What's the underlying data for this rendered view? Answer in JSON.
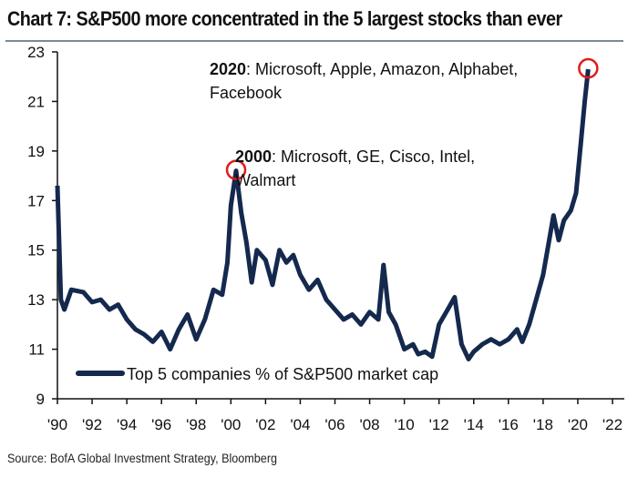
{
  "title": "Chart 7: S&P500 more concentrated in the 5 largest stocks than ever",
  "source": "Source: BofA Global Investment Strategy, Bloomberg",
  "chart_data": {
    "type": "line",
    "title": "Chart 7: S&P500 more concentrated in the 5 largest stocks than ever",
    "xlabel": "",
    "ylabel": "",
    "xlim": [
      1990,
      2023
    ],
    "ylim": [
      9,
      23
    ],
    "yticks": [
      9,
      11,
      13,
      15,
      17,
      19,
      21,
      23
    ],
    "xticks": [
      1990,
      1992,
      1994,
      1996,
      1998,
      2000,
      2002,
      2004,
      2006,
      2008,
      2010,
      2012,
      2014,
      2016,
      2018,
      2020,
      2022
    ],
    "xtick_labels": [
      "'90",
      "'92",
      "'94",
      "'96",
      "'98",
      "'00",
      "'02",
      "'04",
      "'06",
      "'08",
      "'10",
      "'12",
      "'14",
      "'16",
      "'18",
      "'20",
      "'22"
    ],
    "grid": false,
    "legend_placement": "bottom-left",
    "line_color": "#14294d",
    "highlight_color": "#e01b1b",
    "series": [
      {
        "name": "Top 5 companies % of S&P500 market cap",
        "x": [
          1990.0,
          1990.2,
          1990.4,
          1990.8,
          1991.5,
          1992.0,
          1992.5,
          1993.0,
          1993.5,
          1994.0,
          1994.5,
          1995.0,
          1995.5,
          1996.0,
          1996.5,
          1997.0,
          1997.5,
          1998.0,
          1998.5,
          1999.0,
          1999.5,
          1999.8,
          2000.0,
          2000.3,
          2000.6,
          2000.9,
          2001.2,
          2001.5,
          2002.0,
          2002.4,
          2002.8,
          2003.2,
          2003.6,
          2004.0,
          2004.5,
          2005.0,
          2005.5,
          2006.0,
          2006.5,
          2007.0,
          2007.5,
          2008.0,
          2008.5,
          2008.8,
          2009.1,
          2009.5,
          2010.0,
          2010.5,
          2010.8,
          2011.2,
          2011.6,
          2012.0,
          2012.5,
          2012.9,
          2013.3,
          2013.7,
          2014.0,
          2014.5,
          2015.0,
          2015.5,
          2016.0,
          2016.5,
          2016.8,
          2017.2,
          2017.6,
          2018.0,
          2018.3,
          2018.6,
          2018.9,
          2019.2,
          2019.6,
          2019.9,
          2020.2,
          2020.4,
          2020.6
        ],
        "values": [
          17.6,
          13.0,
          12.6,
          13.4,
          13.3,
          12.9,
          13.0,
          12.6,
          12.8,
          12.2,
          11.8,
          11.6,
          11.3,
          11.7,
          11.0,
          11.8,
          12.4,
          11.4,
          12.2,
          13.4,
          13.2,
          14.5,
          16.8,
          18.2,
          16.5,
          15.3,
          13.7,
          15.0,
          14.6,
          13.6,
          15.0,
          14.5,
          14.8,
          14.0,
          13.4,
          13.8,
          13.0,
          12.6,
          12.2,
          12.4,
          12.0,
          12.5,
          12.2,
          14.4,
          12.5,
          12.0,
          11.0,
          11.2,
          10.8,
          10.9,
          10.7,
          12.0,
          12.6,
          13.1,
          11.2,
          10.6,
          10.9,
          11.2,
          11.4,
          11.2,
          11.4,
          11.8,
          11.3,
          12.0,
          13.0,
          14.0,
          15.2,
          16.4,
          15.4,
          16.2,
          16.6,
          17.3,
          19.5,
          21.0,
          22.3
        ]
      }
    ],
    "annotations": [
      {
        "x": 2000.3,
        "y": 18.2,
        "bold": "2000",
        "text": ": Microsoft, GE, Cisco, Intel,",
        "text2": "Walmart"
      },
      {
        "x": 2020.6,
        "y": 22.3,
        "bold": "2020",
        "text": ": Microsoft, Apple, Amazon, Alphabet,",
        "text2": "Facebook"
      }
    ]
  }
}
